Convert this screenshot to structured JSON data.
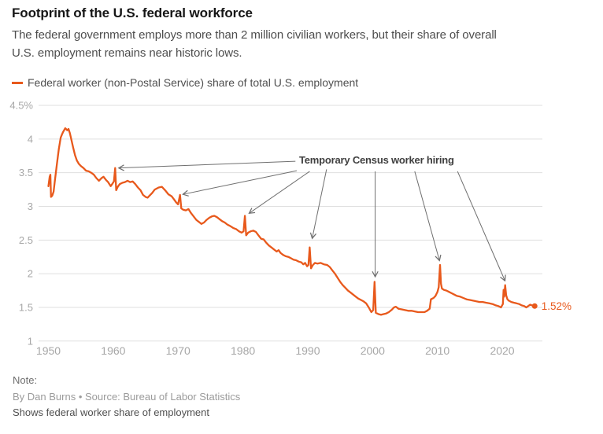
{
  "header": {
    "title": "Footprint of the U.S. federal workforce",
    "subtitle_lines": [
      "The federal government employs more than 2 million civilian workers, but their share of overall",
      "U.S. employment remains near historic lows."
    ]
  },
  "legend": {
    "label": "Federal worker (non-Postal Service) share of total U.S. employment",
    "swatch_color": "#e8591c"
  },
  "chart_data": {
    "type": "line",
    "title": "Footprint of the U.S. federal workforce",
    "xlabel": "",
    "ylabel": "Federal worker (non-Postal Service) share of total U.S. employment (%)",
    "xlim": [
      1948.5,
      2026.2
    ],
    "ylim": [
      1,
      4.5
    ],
    "grid": "horizontal",
    "legend_position": "top-left",
    "x_ticks": [
      1950,
      1960,
      1970,
      1980,
      1990,
      2000,
      2010,
      2020
    ],
    "y_ticks": [
      {
        "value": 4.5,
        "label": "4.5%"
      },
      {
        "value": 4,
        "label": "4"
      },
      {
        "value": 3.5,
        "label": "3.5"
      },
      {
        "value": 3,
        "label": "3"
      },
      {
        "value": 2.5,
        "label": "2.5"
      },
      {
        "value": 2,
        "label": "2"
      },
      {
        "value": 1.5,
        "label": "1.5"
      },
      {
        "value": 1,
        "label": "1"
      }
    ],
    "colors": {
      "line": "#e8591c",
      "grid": "#dfdfdf",
      "axis_text": "#a7a7a7",
      "arrow": "#6f6f6f",
      "annotation_text": "#3f3f3f",
      "end_label": "#e8591c"
    },
    "annotation": {
      "text": "Temporary Census worker hiring",
      "arrows": [
        {
          "from": [
            1988.1,
            3.67
          ],
          "to": [
            1960.9,
            3.57
          ]
        },
        {
          "from": [
            1988.3,
            3.53
          ],
          "to": [
            1970.8,
            3.18
          ]
        },
        {
          "from": [
            1990.3,
            3.52
          ],
          "to": [
            1981.0,
            2.9
          ]
        },
        {
          "from": [
            1992.9,
            3.55
          ],
          "to": [
            1990.7,
            2.53
          ]
        },
        {
          "from": [
            2000.4,
            3.52
          ],
          "to": [
            2000.4,
            1.96
          ]
        },
        {
          "from": [
            2006.5,
            3.52
          ],
          "to": [
            2010.3,
            2.2
          ]
        },
        {
          "from": [
            2013.1,
            3.52
          ],
          "to": [
            2020.4,
            1.9
          ]
        }
      ]
    },
    "end_point": {
      "year": 2025.0,
      "value": 1.52,
      "label": "1.52%"
    },
    "series": [
      {
        "name": "Federal worker (non-Postal Service) share of total U.S. employment",
        "color": "#e8591c",
        "points": [
          [
            1950.0,
            3.3
          ],
          [
            1950.2,
            3.44
          ],
          [
            1950.3,
            3.47
          ],
          [
            1950.4,
            3.14
          ],
          [
            1950.6,
            3.16
          ],
          [
            1950.8,
            3.22
          ],
          [
            1951.0,
            3.38
          ],
          [
            1951.3,
            3.62
          ],
          [
            1951.6,
            3.85
          ],
          [
            1951.9,
            4.02
          ],
          [
            1952.1,
            4.07
          ],
          [
            1952.3,
            4.11
          ],
          [
            1952.6,
            4.16
          ],
          [
            1952.9,
            4.13
          ],
          [
            1953.1,
            4.15
          ],
          [
            1953.3,
            4.09
          ],
          [
            1953.5,
            4.01
          ],
          [
            1953.8,
            3.88
          ],
          [
            1954.1,
            3.76
          ],
          [
            1954.4,
            3.68
          ],
          [
            1954.7,
            3.63
          ],
          [
            1955.0,
            3.6
          ],
          [
            1955.4,
            3.57
          ],
          [
            1955.8,
            3.53
          ],
          [
            1956.2,
            3.52
          ],
          [
            1956.6,
            3.5
          ],
          [
            1957.0,
            3.47
          ],
          [
            1957.4,
            3.42
          ],
          [
            1957.8,
            3.38
          ],
          [
            1958.2,
            3.42
          ],
          [
            1958.5,
            3.44
          ],
          [
            1958.9,
            3.39
          ],
          [
            1959.2,
            3.36
          ],
          [
            1959.6,
            3.3
          ],
          [
            1959.9,
            3.34
          ],
          [
            1960.1,
            3.37
          ],
          [
            1960.3,
            3.57
          ],
          [
            1960.45,
            3.24
          ],
          [
            1960.7,
            3.29
          ],
          [
            1961.0,
            3.33
          ],
          [
            1961.4,
            3.35
          ],
          [
            1961.8,
            3.36
          ],
          [
            1962.2,
            3.38
          ],
          [
            1962.6,
            3.36
          ],
          [
            1963.0,
            3.37
          ],
          [
            1963.4,
            3.33
          ],
          [
            1963.8,
            3.28
          ],
          [
            1964.2,
            3.24
          ],
          [
            1964.6,
            3.17
          ],
          [
            1965.0,
            3.14
          ],
          [
            1965.3,
            3.13
          ],
          [
            1965.6,
            3.16
          ],
          [
            1966.0,
            3.2
          ],
          [
            1966.4,
            3.25
          ],
          [
            1967.0,
            3.28
          ],
          [
            1967.5,
            3.29
          ],
          [
            1968.0,
            3.24
          ],
          [
            1968.5,
            3.18
          ],
          [
            1969.0,
            3.15
          ],
          [
            1969.4,
            3.1
          ],
          [
            1969.7,
            3.06
          ],
          [
            1970.0,
            3.03
          ],
          [
            1970.3,
            3.17
          ],
          [
            1970.5,
            2.97
          ],
          [
            1970.8,
            2.95
          ],
          [
            1971.2,
            2.94
          ],
          [
            1971.6,
            2.96
          ],
          [
            1972.0,
            2.9
          ],
          [
            1972.4,
            2.85
          ],
          [
            1972.8,
            2.8
          ],
          [
            1973.2,
            2.77
          ],
          [
            1973.6,
            2.74
          ],
          [
            1974.0,
            2.76
          ],
          [
            1974.4,
            2.8
          ],
          [
            1974.8,
            2.83
          ],
          [
            1975.2,
            2.85
          ],
          [
            1975.6,
            2.86
          ],
          [
            1976.0,
            2.84
          ],
          [
            1976.4,
            2.81
          ],
          [
            1976.8,
            2.78
          ],
          [
            1977.2,
            2.76
          ],
          [
            1977.6,
            2.73
          ],
          [
            1978.0,
            2.71
          ],
          [
            1978.5,
            2.68
          ],
          [
            1979.0,
            2.66
          ],
          [
            1979.4,
            2.63
          ],
          [
            1979.8,
            2.61
          ],
          [
            1980.1,
            2.63
          ],
          [
            1980.3,
            2.86
          ],
          [
            1980.5,
            2.57
          ],
          [
            1980.8,
            2.61
          ],
          [
            1981.2,
            2.63
          ],
          [
            1981.6,
            2.64
          ],
          [
            1982.0,
            2.62
          ],
          [
            1982.4,
            2.57
          ],
          [
            1982.8,
            2.52
          ],
          [
            1983.2,
            2.51
          ],
          [
            1983.6,
            2.46
          ],
          [
            1984.0,
            2.42
          ],
          [
            1984.4,
            2.39
          ],
          [
            1984.8,
            2.36
          ],
          [
            1985.2,
            2.33
          ],
          [
            1985.5,
            2.35
          ],
          [
            1985.8,
            2.31
          ],
          [
            1986.2,
            2.28
          ],
          [
            1986.6,
            2.26
          ],
          [
            1987.0,
            2.25
          ],
          [
            1987.4,
            2.23
          ],
          [
            1987.8,
            2.21
          ],
          [
            1988.2,
            2.2
          ],
          [
            1988.6,
            2.18
          ],
          [
            1989.0,
            2.17
          ],
          [
            1989.3,
            2.14
          ],
          [
            1989.6,
            2.16
          ],
          [
            1989.9,
            2.11
          ],
          [
            1990.1,
            2.13
          ],
          [
            1990.3,
            2.39
          ],
          [
            1990.5,
            2.08
          ],
          [
            1990.8,
            2.13
          ],
          [
            1991.1,
            2.16
          ],
          [
            1991.5,
            2.15
          ],
          [
            1992.0,
            2.16
          ],
          [
            1992.5,
            2.14
          ],
          [
            1993.0,
            2.13
          ],
          [
            1993.4,
            2.1
          ],
          [
            1993.8,
            2.05
          ],
          [
            1994.2,
            2.0
          ],
          [
            1994.6,
            1.94
          ],
          [
            1995.0,
            1.88
          ],
          [
            1995.4,
            1.83
          ],
          [
            1995.8,
            1.79
          ],
          [
            1996.2,
            1.75
          ],
          [
            1996.6,
            1.72
          ],
          [
            1997.0,
            1.69
          ],
          [
            1997.4,
            1.66
          ],
          [
            1997.8,
            1.63
          ],
          [
            1998.2,
            1.61
          ],
          [
            1998.6,
            1.59
          ],
          [
            1999.0,
            1.56
          ],
          [
            1999.4,
            1.5
          ],
          [
            1999.8,
            1.43
          ],
          [
            2000.1,
            1.46
          ],
          [
            2000.3,
            1.88
          ],
          [
            2000.5,
            1.42
          ],
          [
            2000.9,
            1.4
          ],
          [
            2001.3,
            1.39
          ],
          [
            2001.7,
            1.4
          ],
          [
            2002.1,
            1.41
          ],
          [
            2002.5,
            1.43
          ],
          [
            2002.9,
            1.46
          ],
          [
            2003.3,
            1.5
          ],
          [
            2003.6,
            1.51
          ],
          [
            2004.0,
            1.48
          ],
          [
            2004.5,
            1.47
          ],
          [
            2005.0,
            1.46
          ],
          [
            2005.5,
            1.45
          ],
          [
            2006.0,
            1.45
          ],
          [
            2006.5,
            1.44
          ],
          [
            2007.0,
            1.43
          ],
          [
            2007.5,
            1.43
          ],
          [
            2008.0,
            1.43
          ],
          [
            2008.4,
            1.45
          ],
          [
            2008.8,
            1.48
          ],
          [
            2009.0,
            1.62
          ],
          [
            2009.4,
            1.64
          ],
          [
            2009.7,
            1.67
          ],
          [
            2010.0,
            1.73
          ],
          [
            2010.2,
            1.8
          ],
          [
            2010.4,
            2.13
          ],
          [
            2010.55,
            1.85
          ],
          [
            2010.7,
            1.78
          ],
          [
            2011.0,
            1.76
          ],
          [
            2011.4,
            1.75
          ],
          [
            2011.8,
            1.73
          ],
          [
            2012.2,
            1.71
          ],
          [
            2012.6,
            1.69
          ],
          [
            2013.0,
            1.67
          ],
          [
            2013.5,
            1.66
          ],
          [
            2014.0,
            1.64
          ],
          [
            2014.5,
            1.62
          ],
          [
            2015.0,
            1.61
          ],
          [
            2015.5,
            1.6
          ],
          [
            2016.0,
            1.59
          ],
          [
            2016.5,
            1.58
          ],
          [
            2017.0,
            1.58
          ],
          [
            2017.5,
            1.57
          ],
          [
            2018.0,
            1.56
          ],
          [
            2018.5,
            1.55
          ],
          [
            2019.0,
            1.53
          ],
          [
            2019.4,
            1.52
          ],
          [
            2019.8,
            1.5
          ],
          [
            2020.1,
            1.55
          ],
          [
            2020.2,
            1.76
          ],
          [
            2020.3,
            1.66
          ],
          [
            2020.45,
            1.83
          ],
          [
            2020.6,
            1.68
          ],
          [
            2020.8,
            1.62
          ],
          [
            2021.0,
            1.6
          ],
          [
            2021.4,
            1.58
          ],
          [
            2021.8,
            1.57
          ],
          [
            2022.2,
            1.56
          ],
          [
            2022.6,
            1.55
          ],
          [
            2023.0,
            1.53
          ],
          [
            2023.4,
            1.52
          ],
          [
            2023.7,
            1.5
          ],
          [
            2024.0,
            1.52
          ],
          [
            2024.3,
            1.54
          ],
          [
            2024.6,
            1.53
          ],
          [
            2025.0,
            1.52
          ]
        ]
      }
    ]
  },
  "footer": {
    "note_label": "Note:",
    "byline": "By Dan Burns • Source: Bureau of Labor Statistics",
    "caption": "Shows federal worker share of employment"
  }
}
